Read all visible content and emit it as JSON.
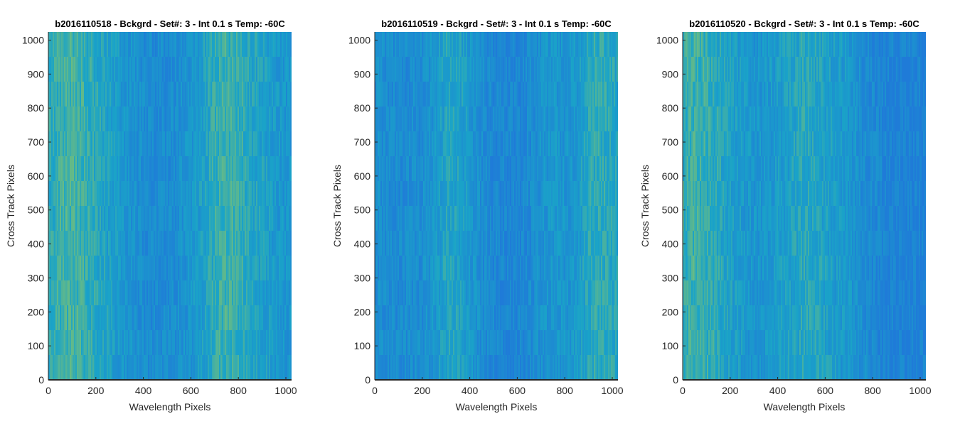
{
  "chart_data": [
    {
      "type": "heatmap",
      "title": "b2016110518 - Bckgrd - Set#: 3 - Int 0.1 s Temp: -60C",
      "xlabel": "Wavelength Pixels",
      "ylabel": "Cross Track Pixels",
      "xlim": [
        0,
        1024
      ],
      "ylim": [
        0,
        1024
      ],
      "xticks": [
        0,
        200,
        400,
        600,
        800,
        1000
      ],
      "yticks": [
        0,
        100,
        200,
        300,
        400,
        500,
        600,
        700,
        800,
        900,
        1000
      ],
      "grid": false,
      "colormap": "parula",
      "colors": {
        "low": "#1f7bd8",
        "mid": "#1aa3c8",
        "high": "#86c46a"
      },
      "column_intensity_profile": {
        "x": [
          0,
          50,
          100,
          150,
          200,
          250,
          300,
          350,
          400,
          450,
          500,
          550,
          600,
          650,
          700,
          750,
          800,
          850,
          900,
          950,
          1024
        ],
        "level": [
          0.55,
          0.68,
          0.7,
          0.65,
          0.55,
          0.45,
          0.38,
          0.3,
          0.22,
          0.2,
          0.22,
          0.26,
          0.33,
          0.45,
          0.62,
          0.68,
          0.62,
          0.52,
          0.45,
          0.38,
          0.3
        ]
      }
    },
    {
      "type": "heatmap",
      "title": "b2016110519 - Bckgrd - Set#: 3 - Int 0.1 s Temp: -60C",
      "xlabel": "Wavelength Pixels",
      "ylabel": "Cross Track Pixels",
      "xlim": [
        0,
        1024
      ],
      "ylim": [
        0,
        1024
      ],
      "xticks": [
        0,
        200,
        400,
        600,
        800,
        1000
      ],
      "yticks": [
        0,
        100,
        200,
        300,
        400,
        500,
        600,
        700,
        800,
        900,
        1000
      ],
      "grid": false,
      "colormap": "parula",
      "colors": {
        "low": "#1f7bd8",
        "mid": "#1aa3c8",
        "high": "#86c46a"
      },
      "column_intensity_profile": {
        "x": [
          0,
          50,
          100,
          150,
          200,
          250,
          300,
          350,
          400,
          450,
          500,
          550,
          600,
          650,
          700,
          750,
          800,
          850,
          900,
          950,
          1024
        ],
        "level": [
          0.25,
          0.22,
          0.2,
          0.22,
          0.25,
          0.35,
          0.5,
          0.48,
          0.35,
          0.22,
          0.15,
          0.13,
          0.15,
          0.2,
          0.3,
          0.35,
          0.32,
          0.38,
          0.55,
          0.6,
          0.5
        ]
      }
    },
    {
      "type": "heatmap",
      "title": "b2016110520 - Bckgrd - Set#: 3 - Int 0.1 s Temp: -60C",
      "xlabel": "Wavelength Pixels",
      "ylabel": "Cross Track Pixels",
      "xlim": [
        0,
        1024
      ],
      "ylim": [
        0,
        1024
      ],
      "xticks": [
        0,
        200,
        400,
        600,
        800,
        1000
      ],
      "yticks": [
        0,
        100,
        200,
        300,
        400,
        500,
        600,
        700,
        800,
        900,
        1000
      ],
      "grid": false,
      "colormap": "parula",
      "colors": {
        "low": "#1f7bd8",
        "mid": "#1aa3c8",
        "high": "#86c46a"
      },
      "column_intensity_profile": {
        "x": [
          0,
          50,
          100,
          150,
          200,
          250,
          300,
          350,
          400,
          450,
          500,
          550,
          600,
          650,
          700,
          750,
          800,
          850,
          900,
          950,
          1024
        ],
        "level": [
          0.62,
          0.68,
          0.62,
          0.55,
          0.45,
          0.38,
          0.33,
          0.35,
          0.4,
          0.45,
          0.55,
          0.52,
          0.45,
          0.4,
          0.35,
          0.25,
          0.18,
          0.12,
          0.1,
          0.08,
          0.08
        ]
      }
    }
  ]
}
